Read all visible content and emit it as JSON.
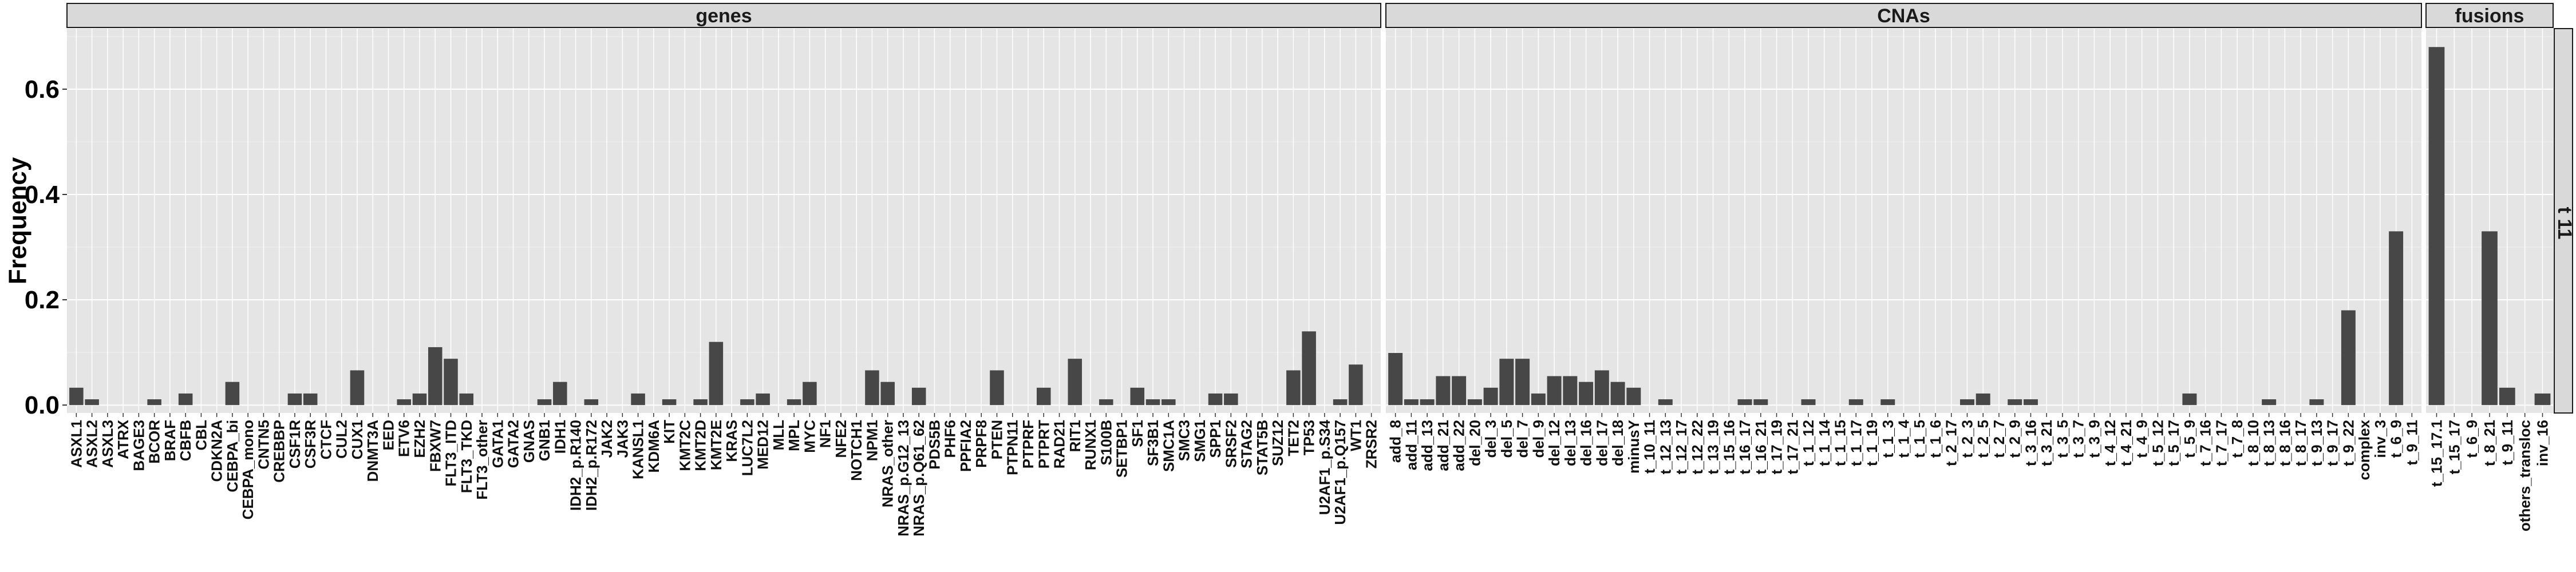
{
  "chart_data": {
    "type": "bar",
    "ylabel": "Frequency",
    "yticks": [
      "0.0",
      "0.2",
      "0.4",
      "0.6"
    ],
    "ylim": [
      -0.015,
      0.715
    ],
    "row_strip": "t 11",
    "panels": [
      {
        "title": "genes",
        "categories": [
          "ASXL1",
          "ASXL2",
          "ASXL3",
          "ATRX",
          "BAGE3",
          "BCOR",
          "BRAF",
          "CBFB",
          "CBL",
          "CDKN2A",
          "CEBPA_bi",
          "CEBPA_mono",
          "CNTN5",
          "CREBBP",
          "CSF1R",
          "CSF3R",
          "CTCF",
          "CUL2",
          "CUX1",
          "DNMT3A",
          "EED",
          "ETV6",
          "EZH2",
          "FBXW7",
          "FLT3_ITD",
          "FLT3_TKD",
          "FLT3_other",
          "GATA1",
          "GATA2",
          "GNAS",
          "GNB1",
          "IDH1",
          "IDH2_p.R140",
          "IDH2_p.R172",
          "JAK2",
          "JAK3",
          "KANSL1",
          "KDM6A",
          "KIT",
          "KMT2C",
          "KMT2D",
          "KMT2E",
          "KRAS",
          "LUC7L2",
          "MED12",
          "MLL",
          "MPL",
          "MYC",
          "NF1",
          "NFE2",
          "NOTCH1",
          "NPM1",
          "NRAS_other",
          "NRAS_p.G12_13",
          "NRAS_p.Q61_62",
          "PDS5B",
          "PHF6",
          "PPFIA2",
          "PRPF8",
          "PTEN",
          "PTPN11",
          "PTPRF",
          "PTPRT",
          "RAD21",
          "RIT1",
          "RUNX1",
          "S100B",
          "SETBP1",
          "SF1",
          "SF3B1",
          "SMC1A",
          "SMC3",
          "SMG1",
          "SPP1",
          "SRSF2",
          "STAG2",
          "STAT5B",
          "SUZ12",
          "TET2",
          "TP53",
          "U2AF1_p.S34",
          "U2AF1_p.Q157",
          "WT1",
          "ZRSR2"
        ],
        "values": [
          0.033,
          0.011,
          0,
          0,
          0,
          0.011,
          0,
          0.022,
          0,
          0,
          0.044,
          0,
          0,
          0,
          0.022,
          0.022,
          0,
          0,
          0.066,
          0,
          0,
          0.011,
          0.022,
          0.11,
          0.088,
          0.022,
          0,
          0,
          0,
          0,
          0.011,
          0.044,
          0,
          0.011,
          0,
          0,
          0.022,
          0,
          0.011,
          0,
          0.011,
          0.12,
          0,
          0.011,
          0.022,
          0,
          0.011,
          0.044,
          0,
          0,
          0,
          0.066,
          0.044,
          0,
          0.033,
          0,
          0,
          0,
          0,
          0.066,
          0,
          0,
          0.033,
          0,
          0.088,
          0,
          0.011,
          0,
          0.033,
          0.011,
          0.011,
          0,
          0,
          0.022,
          0.022,
          0,
          0,
          0,
          0.066,
          0.14,
          0,
          0.011,
          0.077,
          0
        ]
      },
      {
        "title": "CNAs",
        "categories": [
          "add_8",
          "add_11",
          "add_13",
          "add_21",
          "add_22",
          "del_20",
          "del_3",
          "del_5",
          "del_7",
          "del_9",
          "del_12",
          "del_13",
          "del_16",
          "del_17",
          "del_18",
          "minusY",
          "t_10_11",
          "t_12_13",
          "t_12_17",
          "t_12_22",
          "t_13_19",
          "t_15_16",
          "t_16_17",
          "t_16_21",
          "t_17_19",
          "t_17_21",
          "t_1_12",
          "t_1_14",
          "t_1_15",
          "t_1_17",
          "t_1_19",
          "t_1_3",
          "t_1_4",
          "t_1_5",
          "t_1_6",
          "t_2_17",
          "t_2_3",
          "t_2_5",
          "t_2_7",
          "t_2_9",
          "t_3_16",
          "t_3_21",
          "t_3_5",
          "t_3_7",
          "t_3_9",
          "t_4_12",
          "t_4_21",
          "t_4_9",
          "t_5_12",
          "t_5_17",
          "t_5_9",
          "t_7_16",
          "t_7_17",
          "t_7_8",
          "t_8_10",
          "t_8_13",
          "t_8_16",
          "t_8_17",
          "t_9_13",
          "t_9_17",
          "t_9_22",
          "complex",
          "inv_3",
          "t_6_9",
          "t_9_11"
        ],
        "values": [
          0.099,
          0.011,
          0.011,
          0.055,
          0.055,
          0.011,
          0.033,
          0.088,
          0.088,
          0.022,
          0.055,
          0.055,
          0.044,
          0.066,
          0.044,
          0.033,
          0,
          0.011,
          0,
          0,
          0,
          0,
          0.011,
          0.011,
          0,
          0,
          0.011,
          0,
          0,
          0.011,
          0,
          0.011,
          0,
          0,
          0,
          0,
          0.011,
          0.022,
          0,
          0.011,
          0.011,
          0,
          0,
          0,
          0,
          0,
          0,
          0,
          0,
          0,
          0.022,
          0,
          0,
          0,
          0,
          0.011,
          0,
          0,
          0.011,
          0,
          0.18,
          0,
          0,
          0.33,
          0
        ]
      },
      {
        "title": "fusions",
        "categories": [
          "t_15_17.1",
          "t_15_17",
          "t_6_9",
          "t_8_21",
          "t_9_11",
          "others_transloc",
          "inv_16"
        ],
        "values": [
          0.68,
          0,
          0,
          0.33,
          0.033,
          0,
          0.022
        ]
      }
    ],
    "grid": true,
    "legend": "none",
    "colors": {
      "bar": "#474747",
      "panel_bg": "#e5e5e5",
      "grid_major": "#ffffff",
      "grid_minor": "#efefef",
      "strip_bg": "#d9d9d9",
      "strip_border": "#1a1a1a"
    }
  }
}
